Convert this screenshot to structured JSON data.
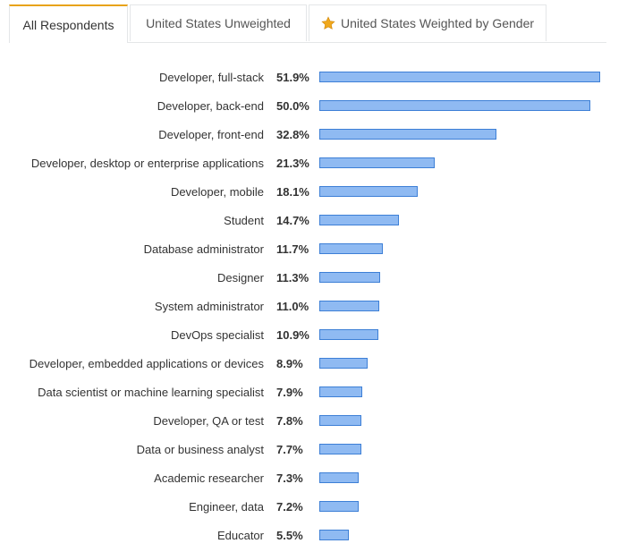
{
  "tabs": [
    {
      "label": "All Respondents",
      "active": true
    },
    {
      "label": "United States Unweighted",
      "active": false
    },
    {
      "label": "United States Weighted by Gender",
      "active": false,
      "icon": "star-icon"
    }
  ],
  "colors": {
    "bar_fill": "#8fbaf2",
    "bar_border": "#3d7fd6",
    "tab_active_accent": "#e8a317",
    "star": "#f0a81c"
  },
  "chart_data": {
    "type": "bar",
    "orientation": "horizontal",
    "title": "",
    "xlabel": "",
    "ylabel": "",
    "xlim": [
      0,
      51.9
    ],
    "grid": false,
    "legend": "none",
    "categories": [
      "Developer, full-stack",
      "Developer, back-end",
      "Developer, front-end",
      "Developer, desktop or enterprise applications",
      "Developer, mobile",
      "Student",
      "Database administrator",
      "Designer",
      "System administrator",
      "DevOps specialist",
      "Developer, embedded applications or devices",
      "Data scientist or machine learning specialist",
      "Developer, QA or test",
      "Data or business analyst",
      "Academic researcher",
      "Engineer, data",
      "Educator"
    ],
    "values": [
      51.9,
      50.0,
      32.8,
      21.3,
      18.1,
      14.7,
      11.7,
      11.3,
      11.0,
      10.9,
      8.9,
      7.9,
      7.8,
      7.7,
      7.3,
      7.2,
      5.5
    ],
    "value_labels": [
      "51.9%",
      "50.0%",
      "32.8%",
      "21.3%",
      "18.1%",
      "14.7%",
      "11.7%",
      "11.3%",
      "11.0%",
      "10.9%",
      "8.9%",
      "7.9%",
      "7.8%",
      "7.7%",
      "7.3%",
      "7.2%",
      "5.5%"
    ]
  }
}
